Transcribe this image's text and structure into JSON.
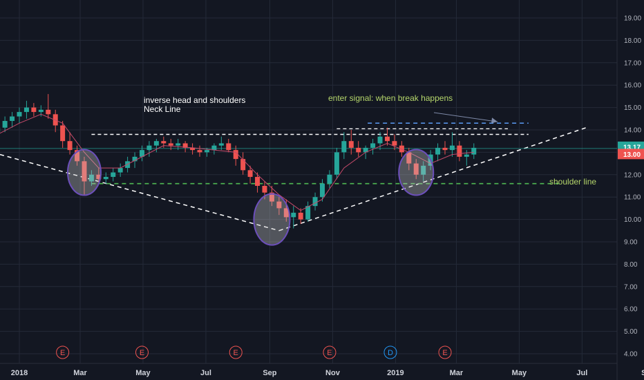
{
  "chart_data": {
    "type": "candlestick",
    "y_axis": {
      "ticks": [
        "19.00",
        "18.00",
        "17.00",
        "16.00",
        "15.00",
        "14.00",
        "13.00",
        "12.00",
        "11.00",
        "10.00",
        "9.00",
        "8.00",
        "7.00",
        "6.00",
        "5.00",
        "4.00"
      ],
      "range": [
        4.0,
        19.5
      ],
      "position": "right"
    },
    "x_axis": {
      "ticks": [
        {
          "label": "2018",
          "date": "2018-01-01"
        },
        {
          "label": "Mar",
          "date": "2018-03-01"
        },
        {
          "label": "May",
          "date": "2018-05-01"
        },
        {
          "label": "Jul",
          "date": "2018-07-01"
        },
        {
          "label": "Sep",
          "date": "2018-09-01"
        },
        {
          "label": "Nov",
          "date": "2018-11-01"
        },
        {
          "label": "2019",
          "date": "2019-01-01"
        },
        {
          "label": "Mar",
          "date": "2019-03-01"
        },
        {
          "label": "May",
          "date": "2019-05-01"
        },
        {
          "label": "Jul",
          "date": "2019-07-01"
        },
        {
          "label": "Se",
          "date": "2019-09-01"
        }
      ]
    },
    "grid": true,
    "price_labels": [
      {
        "text": "13.17",
        "value": 13.17,
        "color": "#26a69a"
      },
      {
        "text": "13.00",
        "value": 13.0,
        "color": "#ef5350"
      }
    ],
    "annotations": [
      {
        "id": "title",
        "text": "inverse head and shoulders"
      },
      {
        "id": "neck",
        "text": "Neck Line"
      },
      {
        "id": "enter",
        "text": "enter signal: when break happens"
      },
      {
        "id": "shoulder",
        "text": "shoulder line"
      }
    ],
    "events": [
      {
        "label": "E",
        "date": "2018-02-12",
        "color": "#ef5350"
      },
      {
        "label": "E",
        "date": "2018-04-30",
        "color": "#ef5350"
      },
      {
        "label": "E",
        "date": "2018-07-30",
        "color": "#ef5350"
      },
      {
        "label": "E",
        "date": "2018-10-29",
        "color": "#ef5350"
      },
      {
        "label": "D",
        "date": "2018-12-27",
        "color": "#2196f3"
      },
      {
        "label": "E",
        "date": "2019-02-18",
        "color": "#ef5350"
      }
    ],
    "neckline_level": 13.8,
    "shoulder_level": 11.6,
    "break_level": 14.3,
    "candles": [
      [
        "2017-12-11",
        13.9,
        14.3,
        13.7,
        14.1
      ],
      [
        "2017-12-18",
        14.1,
        14.6,
        13.9,
        14.4
      ],
      [
        "2017-12-25",
        14.4,
        14.8,
        14.1,
        14.6
      ],
      [
        "2018-01-01",
        14.6,
        15.0,
        14.3,
        14.8
      ],
      [
        "2018-01-08",
        14.8,
        15.3,
        14.5,
        15.0
      ],
      [
        "2018-01-15",
        15.0,
        15.2,
        14.6,
        14.8
      ],
      [
        "2018-01-22",
        14.8,
        15.1,
        14.6,
        14.9
      ],
      [
        "2018-01-29",
        14.9,
        15.6,
        14.5,
        14.7
      ],
      [
        "2018-02-05",
        14.7,
        14.9,
        13.9,
        14.2
      ],
      [
        "2018-02-12",
        14.2,
        14.4,
        13.2,
        13.5
      ],
      [
        "2018-02-19",
        13.5,
        13.9,
        12.9,
        13.1
      ],
      [
        "2018-02-26",
        13.1,
        13.3,
        12.4,
        12.6
      ],
      [
        "2018-03-05",
        12.6,
        12.8,
        11.1,
        11.7
      ],
      [
        "2018-03-12",
        11.7,
        12.2,
        11.5,
        12.0
      ],
      [
        "2018-03-19",
        12.0,
        12.3,
        11.6,
        11.8
      ],
      [
        "2018-03-26",
        11.8,
        12.1,
        11.6,
        11.9
      ],
      [
        "2018-04-02",
        11.9,
        12.3,
        11.7,
        12.1
      ],
      [
        "2018-04-09",
        12.1,
        12.5,
        11.9,
        12.3
      ],
      [
        "2018-04-16",
        12.3,
        12.8,
        12.1,
        12.6
      ],
      [
        "2018-04-23",
        12.6,
        13.0,
        12.3,
        12.8
      ],
      [
        "2018-04-30",
        12.8,
        13.3,
        12.6,
        13.1
      ],
      [
        "2018-05-07",
        13.1,
        13.5,
        12.8,
        13.3
      ],
      [
        "2018-05-14",
        13.3,
        13.6,
        13.0,
        13.5
      ],
      [
        "2018-05-21",
        13.5,
        13.7,
        13.2,
        13.4
      ],
      [
        "2018-05-28",
        13.4,
        13.6,
        13.1,
        13.3
      ],
      [
        "2018-06-04",
        13.3,
        13.6,
        13.1,
        13.4
      ],
      [
        "2018-06-11",
        13.4,
        13.5,
        13.0,
        13.2
      ],
      [
        "2018-06-18",
        13.2,
        13.4,
        12.9,
        13.1
      ],
      [
        "2018-06-25",
        13.1,
        13.3,
        12.8,
        13.0
      ],
      [
        "2018-07-02",
        13.0,
        13.2,
        12.8,
        13.1
      ],
      [
        "2018-07-09",
        13.1,
        13.4,
        12.9,
        13.3
      ],
      [
        "2018-07-16",
        13.3,
        13.7,
        13.1,
        13.4
      ],
      [
        "2018-07-23",
        13.4,
        13.6,
        13.0,
        13.1
      ],
      [
        "2018-07-30",
        13.1,
        13.3,
        12.4,
        12.7
      ],
      [
        "2018-08-06",
        12.7,
        13.0,
        12.0,
        12.2
      ],
      [
        "2018-08-13",
        12.2,
        12.4,
        11.6,
        11.9
      ],
      [
        "2018-08-20",
        11.9,
        12.1,
        11.2,
        11.5
      ],
      [
        "2018-08-27",
        11.5,
        11.7,
        10.9,
        11.2
      ],
      [
        "2018-09-03",
        11.2,
        11.5,
        10.6,
        10.8
      ],
      [
        "2018-09-10",
        10.8,
        11.0,
        10.2,
        10.5
      ],
      [
        "2018-09-17",
        10.5,
        10.9,
        9.9,
        10.1
      ],
      [
        "2018-09-24",
        10.1,
        10.6,
        9.6,
        10.3
      ],
      [
        "2018-10-01",
        10.3,
        10.5,
        9.8,
        10.0
      ],
      [
        "2018-10-08",
        10.0,
        10.8,
        9.9,
        10.6
      ],
      [
        "2018-10-15",
        10.6,
        11.2,
        10.4,
        11.0
      ],
      [
        "2018-10-22",
        11.0,
        11.8,
        10.8,
        11.6
      ],
      [
        "2018-10-29",
        11.6,
        12.2,
        11.4,
        12.0
      ],
      [
        "2018-11-05",
        12.0,
        13.2,
        11.8,
        13.0
      ],
      [
        "2018-11-12",
        13.0,
        13.9,
        12.7,
        13.5
      ],
      [
        "2018-11-19",
        13.5,
        14.0,
        12.9,
        13.2
      ],
      [
        "2018-11-26",
        13.2,
        13.5,
        12.8,
        13.0
      ],
      [
        "2018-12-03",
        13.0,
        13.3,
        12.7,
        13.2
      ],
      [
        "2018-12-10",
        13.2,
        13.6,
        12.9,
        13.4
      ],
      [
        "2018-12-17",
        13.4,
        13.9,
        13.1,
        13.7
      ],
      [
        "2018-12-24",
        13.7,
        14.1,
        13.3,
        13.5
      ],
      [
        "2018-12-31",
        13.5,
        13.8,
        13.1,
        13.3
      ],
      [
        "2019-01-07",
        13.3,
        13.5,
        12.8,
        13.0
      ],
      [
        "2019-01-14",
        13.0,
        13.2,
        12.2,
        12.5
      ],
      [
        "2019-01-21",
        12.5,
        12.7,
        11.8,
        12.0
      ],
      [
        "2019-01-28",
        12.0,
        12.6,
        11.7,
        12.4
      ],
      [
        "2019-02-04",
        12.4,
        13.1,
        12.2,
        12.9
      ],
      [
        "2019-02-11",
        12.9,
        13.4,
        12.6,
        13.2
      ],
      [
        "2019-02-18",
        13.2,
        13.5,
        12.9,
        13.1
      ],
      [
        "2019-02-25",
        13.1,
        13.9,
        12.8,
        13.3
      ],
      [
        "2019-03-04",
        13.3,
        13.5,
        12.6,
        12.8
      ],
      [
        "2019-03-11",
        12.8,
        13.1,
        12.4,
        12.9
      ],
      [
        "2019-03-18",
        12.9,
        13.4,
        12.7,
        13.2
      ]
    ],
    "moving_average": [
      [
        "2017-12-11",
        13.8
      ],
      [
        "2018-01-01",
        14.3
      ],
      [
        "2018-01-22",
        14.7
      ],
      [
        "2018-02-12",
        14.3
      ],
      [
        "2018-03-05",
        13.0
      ],
      [
        "2018-03-19",
        12.3
      ],
      [
        "2018-04-09",
        12.3
      ],
      [
        "2018-04-30",
        12.8
      ],
      [
        "2018-05-21",
        13.3
      ],
      [
        "2018-06-18",
        13.2
      ],
      [
        "2018-07-09",
        13.1
      ],
      [
        "2018-07-30",
        13.0
      ],
      [
        "2018-08-20",
        12.0
      ],
      [
        "2018-09-10",
        11.1
      ],
      [
        "2018-10-01",
        10.4
      ],
      [
        "2018-10-22",
        10.9
      ],
      [
        "2018-11-12",
        12.3
      ],
      [
        "2018-12-03",
        13.0
      ],
      [
        "2018-12-24",
        13.4
      ],
      [
        "2019-01-14",
        13.0
      ],
      [
        "2019-02-04",
        12.5
      ],
      [
        "2019-02-25",
        12.9
      ],
      [
        "2019-03-18",
        13.0
      ]
    ]
  }
}
